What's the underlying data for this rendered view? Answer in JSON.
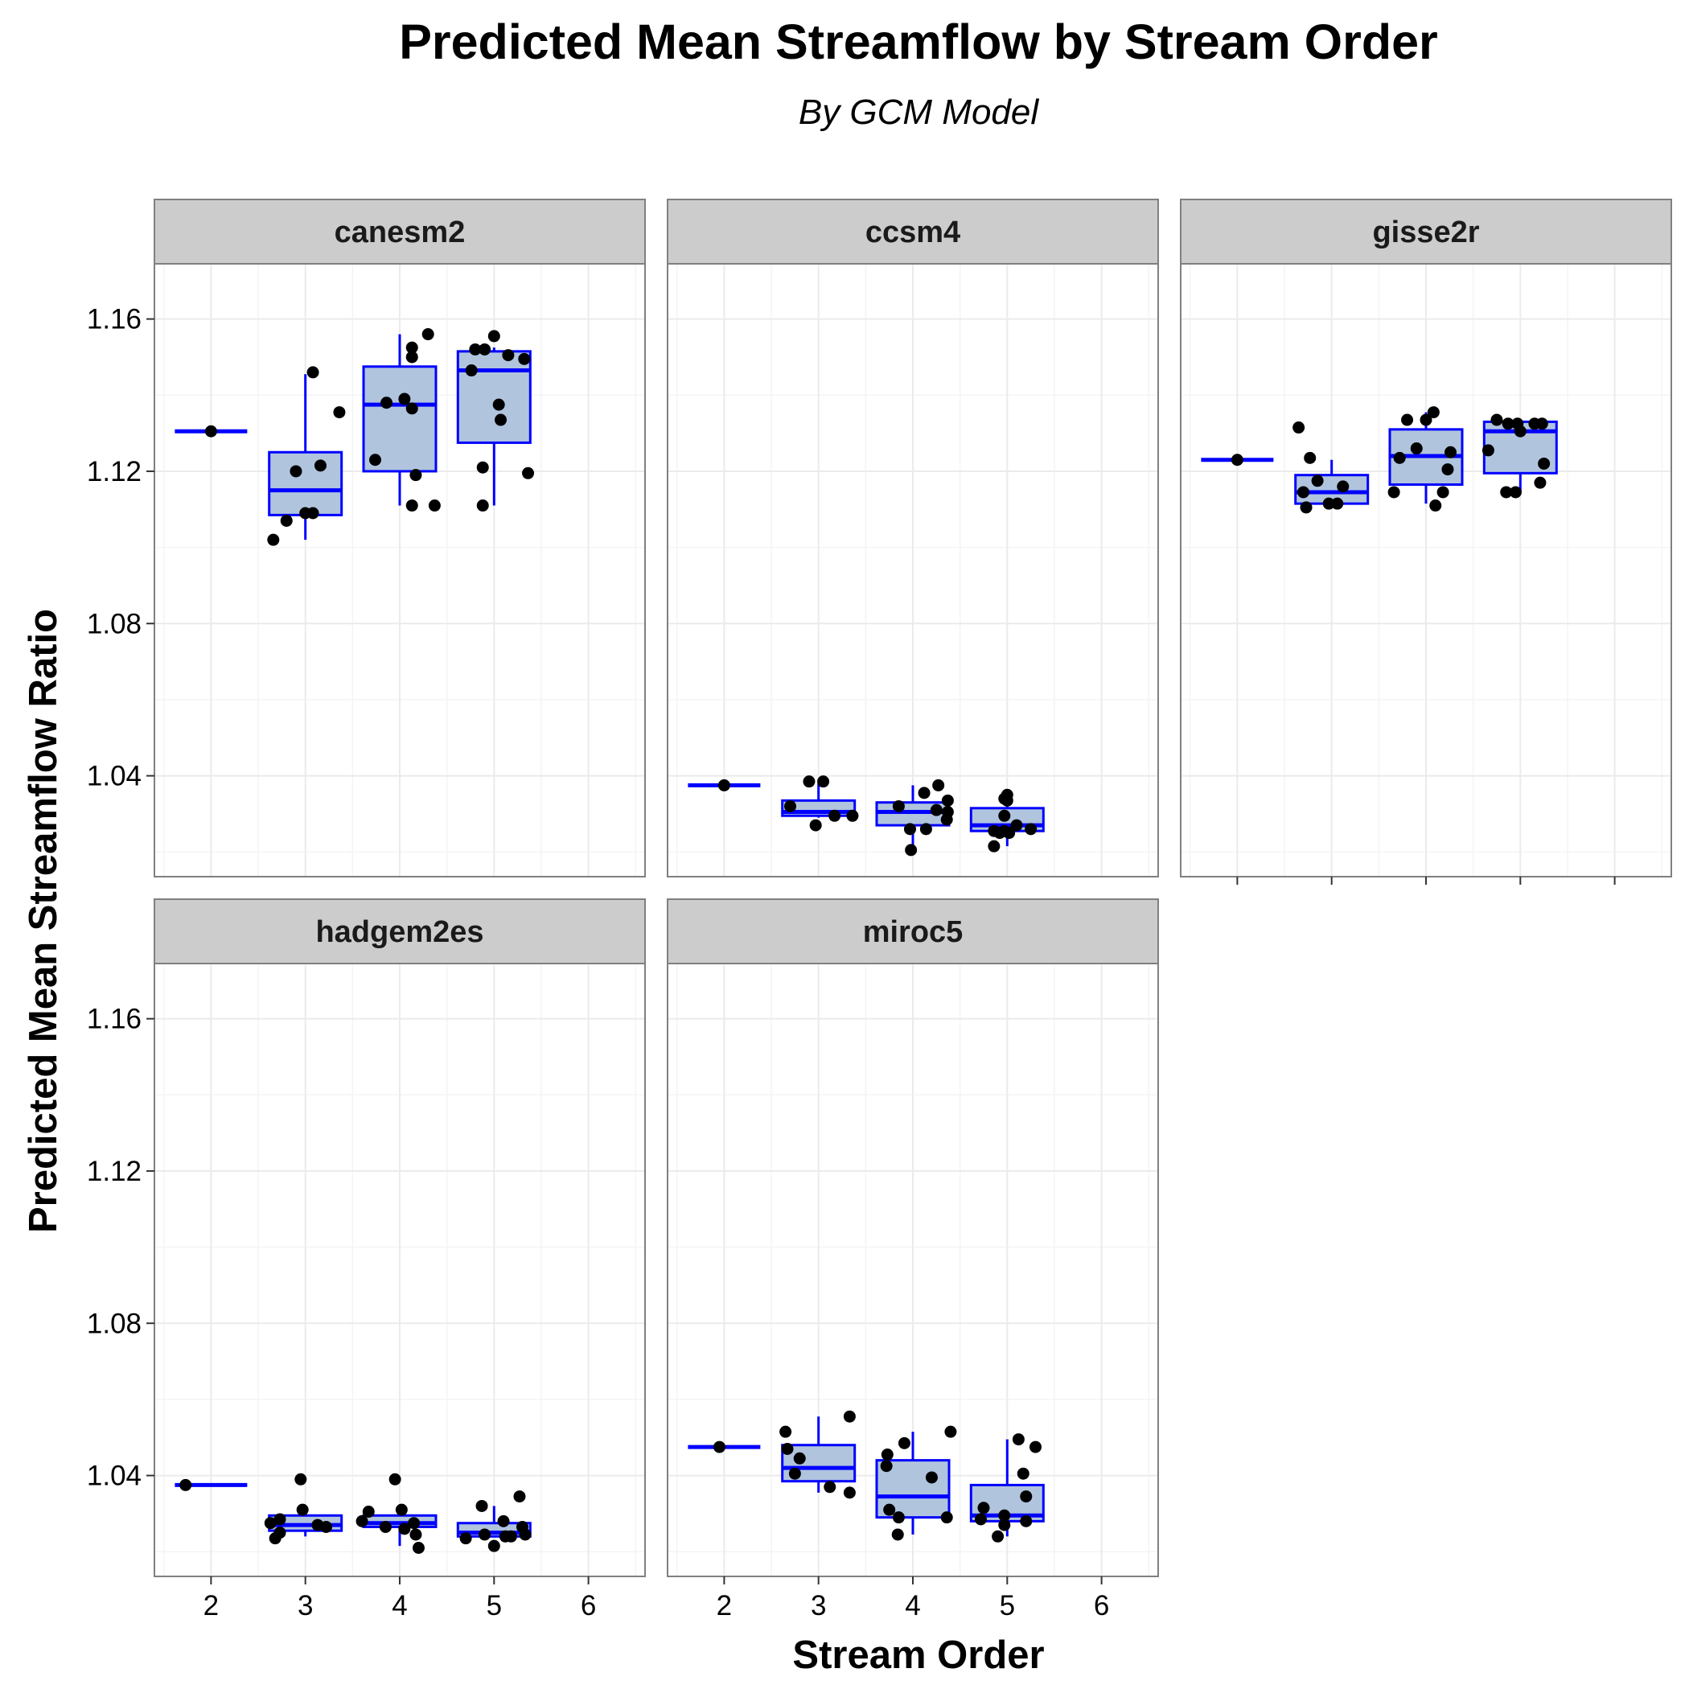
{
  "chart_data": {
    "type": "boxplot",
    "title": "Predicted Mean Streamflow by Stream Order",
    "subtitle": "By GCM Model",
    "xlabel": "Stream Order",
    "ylabel": "Predicted Mean Streamflow Ratio",
    "xlim": [
      1.4,
      6.6
    ],
    "ylim": [
      1.0135,
      1.1745
    ],
    "x_ticks": [
      "2",
      "3",
      "4",
      "5",
      "6"
    ],
    "y_ticks": [
      "1.04",
      "1.08",
      "1.12",
      "1.16"
    ],
    "grid": true,
    "colors": {
      "box_fill": "#b0c4de",
      "box_line": "#0000ff",
      "point": "#000000",
      "strip_fill": "#cccccc",
      "grid_major": "#ebebeb",
      "grid_minor": "#f4f4f4",
      "panel_border": "#808080"
    },
    "panels": [
      {
        "name": "canesm2",
        "boxes": [
          {
            "x": 2,
            "min": 1.1305,
            "q1": 1.1305,
            "median": 1.1305,
            "q3": 1.1305,
            "max": 1.1305
          },
          {
            "x": 3,
            "min": 1.102,
            "q1": 1.1085,
            "median": 1.115,
            "q3": 1.125,
            "max": 1.1455
          },
          {
            "x": 4,
            "min": 1.111,
            "q1": 1.12,
            "median": 1.1375,
            "q3": 1.1475,
            "max": 1.156
          },
          {
            "x": 5,
            "min": 1.111,
            "q1": 1.1275,
            "median": 1.1465,
            "q3": 1.1515,
            "max": 1.1525
          }
        ],
        "points": [
          [
            2.0,
            1.1305
          ],
          [
            2.66,
            1.102
          ],
          [
            2.8,
            1.107
          ],
          [
            2.9,
            1.12
          ],
          [
            3.0,
            1.109
          ],
          [
            3.08,
            1.109
          ],
          [
            3.16,
            1.1215
          ],
          [
            3.08,
            1.146
          ],
          [
            3.36,
            1.1355
          ],
          [
            3.74,
            1.123
          ],
          [
            3.86,
            1.138
          ],
          [
            4.05,
            1.139
          ],
          [
            4.13,
            1.1525
          ],
          [
            4.13,
            1.15
          ],
          [
            4.13,
            1.1365
          ],
          [
            4.17,
            1.119
          ],
          [
            4.13,
            1.111
          ],
          [
            4.37,
            1.111
          ],
          [
            4.3,
            1.156
          ],
          [
            4.76,
            1.1465
          ],
          [
            4.8,
            1.152
          ],
          [
            4.9,
            1.152
          ],
          [
            5.0,
            1.1555
          ],
          [
            4.88,
            1.121
          ],
          [
            4.88,
            1.111
          ],
          [
            5.05,
            1.1375
          ],
          [
            5.07,
            1.1335
          ],
          [
            5.15,
            1.1505
          ],
          [
            5.32,
            1.1495
          ],
          [
            5.36,
            1.1195
          ]
        ]
      },
      {
        "name": "ccsm4",
        "boxes": [
          {
            "x": 2,
            "min": 1.0375,
            "q1": 1.0375,
            "median": 1.0375,
            "q3": 1.0375,
            "max": 1.0375
          },
          {
            "x": 3,
            "min": 1.029,
            "q1": 1.0295,
            "median": 1.0305,
            "q3": 1.0335,
            "max": 1.038
          },
          {
            "x": 4,
            "min": 1.0205,
            "q1": 1.027,
            "median": 1.0305,
            "q3": 1.033,
            "max": 1.0375
          },
          {
            "x": 5,
            "min": 1.0215,
            "q1": 1.0255,
            "median": 1.027,
            "q3": 1.0315,
            "max": 1.035
          }
        ],
        "points": [
          [
            2.0,
            1.0375
          ],
          [
            2.7,
            1.032
          ],
          [
            2.9,
            1.0385
          ],
          [
            3.05,
            1.0385
          ],
          [
            3.17,
            1.0295
          ],
          [
            3.36,
            1.0295
          ],
          [
            2.97,
            1.027
          ],
          [
            3.85,
            1.032
          ],
          [
            3.97,
            1.026
          ],
          [
            4.14,
            1.026
          ],
          [
            4.12,
            1.0355
          ],
          [
            4.27,
            1.0375
          ],
          [
            4.25,
            1.031
          ],
          [
            4.37,
            1.0305
          ],
          [
            4.37,
            1.0335
          ],
          [
            4.36,
            1.0285
          ],
          [
            3.98,
            1.0205
          ],
          [
            4.86,
            1.0215
          ],
          [
            4.86,
            1.0255
          ],
          [
            4.92,
            1.025
          ],
          [
            4.97,
            1.0255
          ],
          [
            4.97,
            1.0295
          ],
          [
            5.0,
            1.0335
          ],
          [
            5.0,
            1.035
          ],
          [
            5.02,
            1.025
          ],
          [
            5.1,
            1.027
          ],
          [
            5.25,
            1.026
          ],
          [
            4.97,
            1.034
          ]
        ]
      },
      {
        "name": "gisse2r",
        "boxes": [
          {
            "x": 2,
            "min": 1.123,
            "q1": 1.123,
            "median": 1.123,
            "q3": 1.123,
            "max": 1.123
          },
          {
            "x": 3,
            "min": 1.111,
            "q1": 1.1115,
            "median": 1.1145,
            "q3": 1.119,
            "max": 1.123
          },
          {
            "x": 4,
            "min": 1.1115,
            "q1": 1.1165,
            "median": 1.124,
            "q3": 1.131,
            "max": 1.1355
          },
          {
            "x": 5,
            "min": 1.1145,
            "q1": 1.1195,
            "median": 1.1305,
            "q3": 1.133,
            "max": 1.1335
          }
        ],
        "points": [
          [
            2.0,
            1.123
          ],
          [
            2.65,
            1.1315
          ],
          [
            2.7,
            1.1145
          ],
          [
            2.73,
            1.1105
          ],
          [
            2.77,
            1.1235
          ],
          [
            2.85,
            1.1175
          ],
          [
            2.97,
            1.1115
          ],
          [
            3.06,
            1.1115
          ],
          [
            3.12,
            1.116
          ],
          [
            3.66,
            1.1145
          ],
          [
            3.72,
            1.1235
          ],
          [
            3.8,
            1.1335
          ],
          [
            3.9,
            1.126
          ],
          [
            4.0,
            1.1335
          ],
          [
            4.08,
            1.1355
          ],
          [
            4.1,
            1.111
          ],
          [
            4.18,
            1.1145
          ],
          [
            4.23,
            1.1205
          ],
          [
            4.26,
            1.125
          ],
          [
            4.66,
            1.1255
          ],
          [
            4.75,
            1.1335
          ],
          [
            4.85,
            1.1145
          ],
          [
            4.87,
            1.1325
          ],
          [
            4.95,
            1.1145
          ],
          [
            4.97,
            1.1325
          ],
          [
            5.0,
            1.1305
          ],
          [
            5.15,
            1.1325
          ],
          [
            5.23,
            1.1325
          ],
          [
            5.25,
            1.122
          ],
          [
            5.21,
            1.117
          ]
        ]
      },
      {
        "name": "hadgem2es",
        "boxes": [
          {
            "x": 2,
            "min": 1.0375,
            "q1": 1.0375,
            "median": 1.0375,
            "q3": 1.0375,
            "max": 1.0375
          },
          {
            "x": 3,
            "min": 1.024,
            "q1": 1.0255,
            "median": 1.027,
            "q3": 1.0295,
            "max": 1.0295
          },
          {
            "x": 4,
            "min": 1.0215,
            "q1": 1.0265,
            "median": 1.0275,
            "q3": 1.0295,
            "max": 1.0295
          },
          {
            "x": 5,
            "min": 1.024,
            "q1": 1.024,
            "median": 1.025,
            "q3": 1.0275,
            "max": 1.032
          }
        ],
        "points": [
          [
            1.73,
            1.0375
          ],
          [
            2.63,
            1.0275
          ],
          [
            2.68,
            1.0235
          ],
          [
            2.73,
            1.0285
          ],
          [
            2.73,
            1.025
          ],
          [
            2.95,
            1.039
          ],
          [
            2.97,
            1.031
          ],
          [
            3.13,
            1.027
          ],
          [
            3.22,
            1.0265
          ],
          [
            3.6,
            1.028
          ],
          [
            3.67,
            1.0305
          ],
          [
            3.85,
            1.0265
          ],
          [
            3.95,
            1.039
          ],
          [
            4.02,
            1.031
          ],
          [
            4.05,
            1.026
          ],
          [
            4.15,
            1.0275
          ],
          [
            4.17,
            1.0245
          ],
          [
            4.2,
            1.021
          ],
          [
            4.7,
            1.0235
          ],
          [
            4.87,
            1.032
          ],
          [
            4.9,
            1.0245
          ],
          [
            5.0,
            1.0215
          ],
          [
            5.1,
            1.028
          ],
          [
            5.12,
            1.024
          ],
          [
            5.18,
            1.024
          ],
          [
            5.27,
            1.0345
          ],
          [
            5.3,
            1.0265
          ],
          [
            5.33,
            1.0245
          ]
        ]
      },
      {
        "name": "miroc5",
        "boxes": [
          {
            "x": 2,
            "min": 1.0475,
            "q1": 1.0475,
            "median": 1.0475,
            "q3": 1.0475,
            "max": 1.0475
          },
          {
            "x": 3,
            "min": 1.0355,
            "q1": 1.0385,
            "median": 1.042,
            "q3": 1.048,
            "max": 1.0555
          },
          {
            "x": 4,
            "min": 1.0245,
            "q1": 1.029,
            "median": 1.0345,
            "q3": 1.044,
            "max": 1.0515
          },
          {
            "x": 5,
            "min": 1.024,
            "q1": 1.028,
            "median": 1.0295,
            "q3": 1.0375,
            "max": 1.0495
          }
        ],
        "points": [
          [
            1.95,
            1.0475
          ],
          [
            2.65,
            1.0515
          ],
          [
            2.67,
            1.047
          ],
          [
            2.8,
            1.0445
          ],
          [
            2.75,
            1.0405
          ],
          [
            3.12,
            1.037
          ],
          [
            3.33,
            1.0355
          ],
          [
            3.33,
            1.0555
          ],
          [
            3.72,
            1.0425
          ],
          [
            3.73,
            1.0455
          ],
          [
            3.75,
            1.031
          ],
          [
            3.85,
            1.029
          ],
          [
            3.84,
            1.0245
          ],
          [
            3.91,
            1.0485
          ],
          [
            4.2,
            1.0395
          ],
          [
            4.36,
            1.029
          ],
          [
            4.4,
            1.0515
          ],
          [
            4.72,
            1.0285
          ],
          [
            4.75,
            1.0315
          ],
          [
            4.9,
            1.024
          ],
          [
            4.97,
            1.0295
          ],
          [
            4.97,
            1.027
          ],
          [
            5.12,
            1.0495
          ],
          [
            5.17,
            1.0405
          ],
          [
            5.2,
            1.0345
          ],
          [
            5.3,
            1.0475
          ],
          [
            5.2,
            1.028
          ]
        ]
      }
    ]
  }
}
